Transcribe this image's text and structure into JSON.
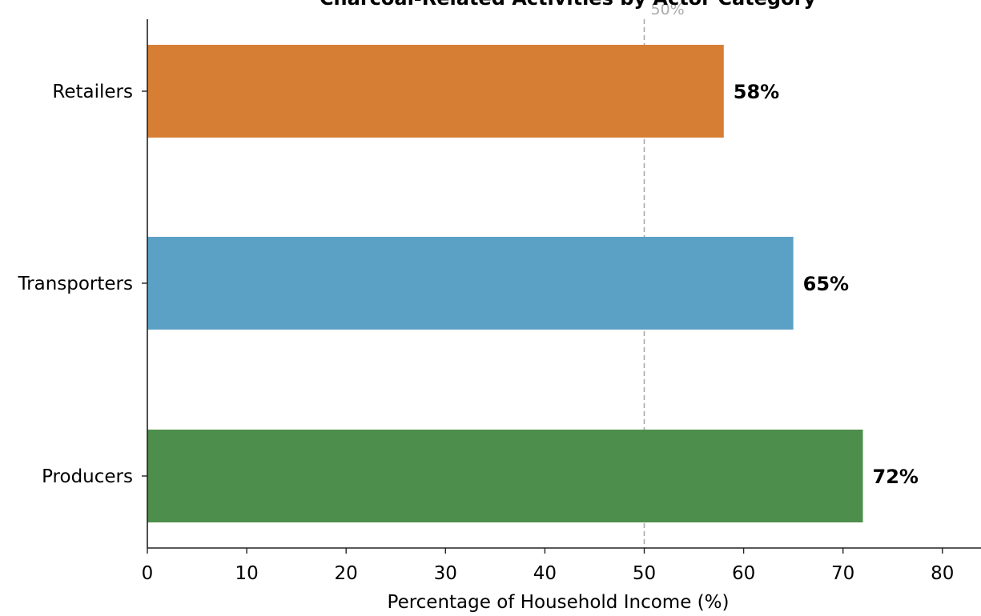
{
  "chart_data": {
    "type": "bar",
    "orientation": "horizontal",
    "title": "Charcoal-Related Activities by Actor Category",
    "xlabel": "Percentage of Household Income (%)",
    "ylabel": "",
    "categories": [
      "Producers",
      "Transporters",
      "Retailers"
    ],
    "values": [
      72,
      65,
      58
    ],
    "value_labels": [
      "72%",
      "65%",
      "58%"
    ],
    "colors": [
      "#4e8e4c",
      "#5ba1c5",
      "#d77e35"
    ],
    "xlim": [
      0,
      84
    ],
    "xticks": [
      0,
      10,
      20,
      30,
      40,
      50,
      60,
      70,
      80
    ],
    "xtick_labels": [
      "0",
      "10",
      "20",
      "30",
      "40",
      "50",
      "60",
      "70",
      "80"
    ],
    "reference_line": {
      "value": 50,
      "label": "50%",
      "color": "#aaaaaa",
      "style": "dashed"
    },
    "grid": false,
    "legend": "none"
  }
}
